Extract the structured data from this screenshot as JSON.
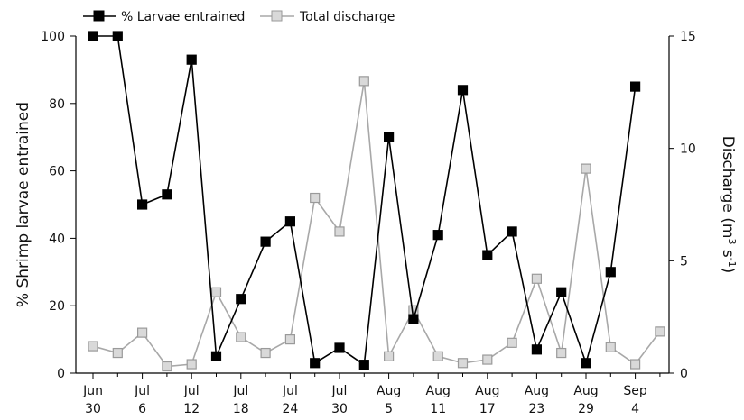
{
  "chart_data": {
    "type": "line",
    "x_categories": [
      "Jun 30",
      "",
      "Jul 6",
      "",
      "Jul 12",
      "",
      "Jul 18",
      "",
      "Jul 24",
      "",
      "Jul 30",
      "",
      "Aug 5",
      "",
      "Aug 11",
      "",
      "Aug 17",
      "",
      "Aug 23",
      "",
      "Aug 29",
      "",
      "Sep 4",
      ""
    ],
    "x_tick_labels": [
      {
        "month": "Jun",
        "day": "30"
      },
      {
        "month": "Jul",
        "day": "6"
      },
      {
        "month": "Jul",
        "day": "12"
      },
      {
        "month": "Jul",
        "day": "18"
      },
      {
        "month": "Jul",
        "day": "24"
      },
      {
        "month": "Jul",
        "day": "30"
      },
      {
        "month": "Aug",
        "day": "5"
      },
      {
        "month": "Aug",
        "day": "11"
      },
      {
        "month": "Aug",
        "day": "17"
      },
      {
        "month": "Aug",
        "day": "23"
      },
      {
        "month": "Aug",
        "day": "29"
      },
      {
        "month": "Sep",
        "day": "4"
      }
    ],
    "ylabel_left": "% Shrimp larvae entrained",
    "ylabel_right_main": "Discharge (m",
    "ylabel_right_sup1": "3",
    "ylabel_right_mid": " s",
    "ylabel_right_sup2": "-1",
    "ylabel_right_end": ")",
    "ylim_left": [
      0,
      100
    ],
    "yticks_left": [
      0,
      20,
      40,
      60,
      80,
      100
    ],
    "ylim_right": [
      0,
      15
    ],
    "yticks_right": [
      0,
      5,
      10,
      15
    ],
    "series": [
      {
        "name": "% Larvae entrained",
        "axis": "left",
        "color": "#000000",
        "marker_fill": "#000000",
        "line_color": "#000000",
        "x": [
          0,
          1,
          2,
          3,
          4,
          5,
          6,
          7,
          8,
          9,
          10,
          11,
          12,
          13,
          14,
          15,
          16,
          17,
          18,
          19,
          20,
          21,
          22
        ],
        "values": [
          100,
          100,
          50,
          53,
          93,
          5,
          22,
          39,
          45,
          3,
          7.5,
          2.5,
          70,
          16,
          41,
          84,
          35,
          42,
          7,
          24,
          3,
          30,
          85
        ]
      },
      {
        "name": "Total discharge",
        "axis": "right",
        "color": "#9a9a9a",
        "marker_fill": "#d9d9d9",
        "line_color": "#a8a8a8",
        "x": [
          0,
          1,
          2,
          3,
          4,
          5,
          6,
          7,
          8,
          9,
          10,
          11,
          12,
          13,
          14,
          15,
          16,
          17,
          18,
          19,
          20,
          21,
          22,
          23
        ],
        "values": [
          1.2,
          0.9,
          1.8,
          0.3,
          0.4,
          3.6,
          1.6,
          0.9,
          1.5,
          7.8,
          6.3,
          13.0,
          0.75,
          2.8,
          0.75,
          0.45,
          0.6,
          1.35,
          4.2,
          0.9,
          9.1,
          1.15,
          0.4,
          1.85
        ]
      }
    ],
    "legend": {
      "placement": "top-left",
      "entries": [
        "% Larvae entrained",
        "Total discharge"
      ]
    },
    "grid": false
  }
}
